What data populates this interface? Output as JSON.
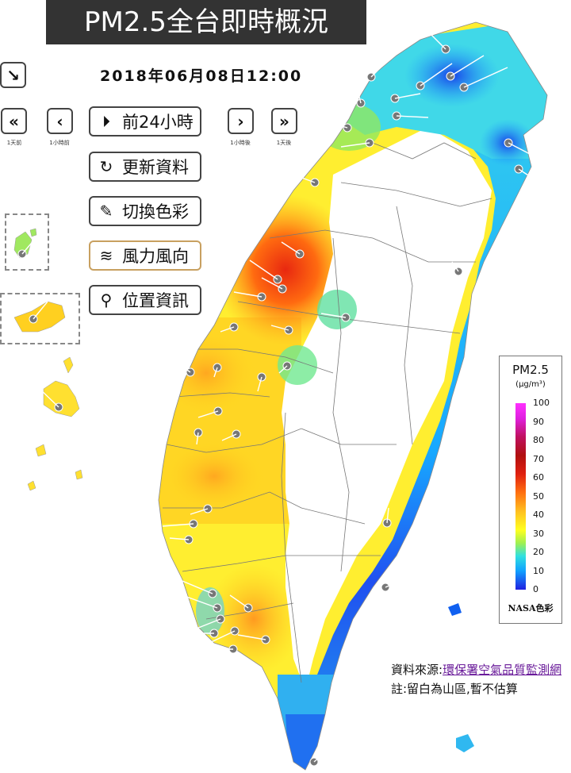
{
  "header": {
    "title": "PM2.5全台即時概況",
    "timestamp": "2018年06月08日12:00"
  },
  "controls": {
    "expand_icon": "arrow-down-right-icon",
    "back_day_label": "1天前",
    "back_hour_label": "1小時前",
    "fwd_hour_label": "1小時後",
    "fwd_day_label": "1天後",
    "play_24h_label": "前24小時",
    "refresh_label": "更新資料",
    "color_label": "切換色彩",
    "wind_label": "風力風向",
    "location_label": "位置資訊"
  },
  "legend": {
    "title": "PM2.5",
    "unit": "(μg/m³)",
    "ticks": [
      "100",
      "90",
      "80",
      "70",
      "60",
      "50",
      "40",
      "30",
      "20",
      "10",
      "0"
    ],
    "caption": "NASA色彩"
  },
  "footer": {
    "source_prefix": "資料來源:",
    "source_link": "環保署空氣品質監測網",
    "note": "註:留白為山區,暫不估算"
  },
  "colors": {
    "title_bg": "#333333",
    "link": "#6a1b9a"
  }
}
